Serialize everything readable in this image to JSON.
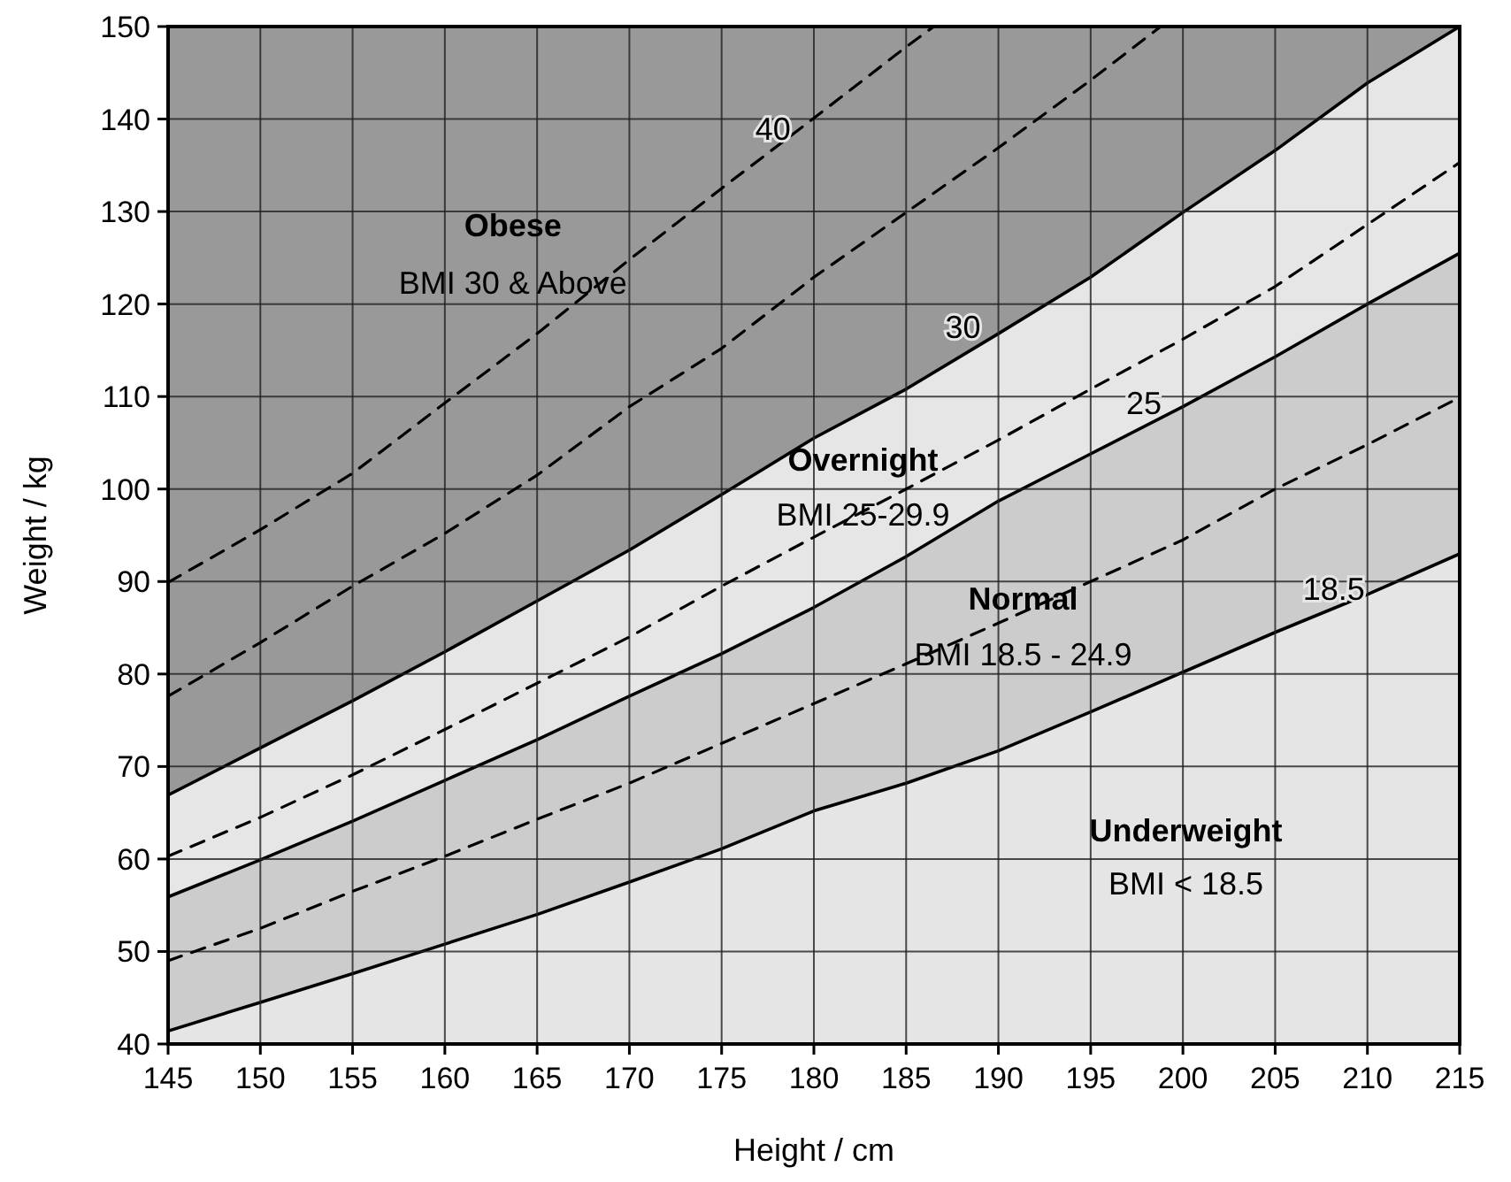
{
  "chart_data": {
    "type": "line",
    "xlabel": "Height / cm",
    "ylabel": "Weight / kg",
    "xlim": [
      145,
      215
    ],
    "xticks": [
      145,
      150,
      155,
      160,
      165,
      170,
      175,
      180,
      185,
      190,
      195,
      200,
      205,
      210,
      215
    ],
    "ylim": [
      40,
      150
    ],
    "yticks": [
      40,
      50,
      60,
      70,
      80,
      90,
      100,
      110,
      120,
      130,
      140,
      150
    ],
    "grid": true,
    "marker": "none",
    "x": [
      145,
      150,
      155,
      160,
      165,
      170,
      175,
      180,
      185,
      190,
      195,
      200,
      205,
      210,
      215
    ],
    "series": [
      {
        "type": "area",
        "color": "#e6e6e6",
        "values": [
          66.9,
          72.0,
          77.1,
          82.4,
          87.9,
          93.4,
          99.4,
          105.5,
          110.8,
          116.8,
          122.9,
          129.9,
          136.6,
          143.9,
          150
        ]
      },
      {
        "type": "area",
        "color": "#cccccc",
        "values": [
          55.9,
          59.9,
          64.1,
          68.5,
          72.9,
          77.6,
          82.2,
          87.2,
          92.7,
          98.7,
          103.8,
          108.9,
          114.3,
          120.0,
          125.5
        ]
      },
      {
        "type": "area",
        "color": "#e5e5e5",
        "values": [
          41.4,
          44.5,
          47.6,
          50.8,
          54.0,
          57.5,
          61.1,
          65.2,
          68.2,
          71.7,
          75.9,
          80.2,
          84.5,
          88.6,
          93.0
        ]
      },
      {
        "color": "#000000",
        "line_style": "dashed",
        "values": [
          49.0,
          52.5,
          56.5,
          60.3,
          64.3,
          68.2,
          72.5,
          76.8,
          81.1,
          85.5,
          90.0,
          94.5,
          100.0,
          104.8,
          109.9
        ]
      },
      {
        "color": "#000000",
        "line_style": "dashed",
        "values": [
          60.3,
          64.5,
          69.1,
          74.0,
          79.0,
          84.0,
          89.5,
          94.8,
          100.0,
          105.3,
          110.8,
          116.2,
          121.9,
          128.6,
          135.3
        ]
      },
      {
        "color": "#000000",
        "line_style": "dashed",
        "x": [
          145,
          150,
          155,
          160,
          165,
          170,
          175,
          180,
          185,
          190,
          195,
          198.8
        ],
        "values": [
          77.6,
          83.4,
          89.5,
          95.2,
          101.5,
          108.9,
          115.2,
          122.9,
          129.9,
          136.9,
          144.2,
          150
        ]
      },
      {
        "color": "#000000",
        "line_style": "dashed",
        "x": [
          145,
          150,
          155,
          160,
          165,
          170,
          175,
          180,
          185,
          186.5
        ],
        "values": [
          89.9,
          95.6,
          101.7,
          109.3,
          116.8,
          124.8,
          132.5,
          140.1,
          147.8,
          150
        ]
      }
    ],
    "annotations": [
      "Obese",
      "BMI 30 & Above",
      "Overnight",
      "BMI 25-29.9",
      "Normal",
      "BMI 18.5 - 24.9",
      "Underweight",
      "BMI < 18.5",
      {
        "text": "40",
        "x": 177.4,
        "y": 135.8
      },
      {
        "text": "30",
        "x": 187.7,
        "y": 114.4
      },
      {
        "text": "25",
        "x": 197.5,
        "y": 106.2
      },
      {
        "text": "18.5",
        "x": 207.8,
        "y": 86.1
      }
    ]
  }
}
